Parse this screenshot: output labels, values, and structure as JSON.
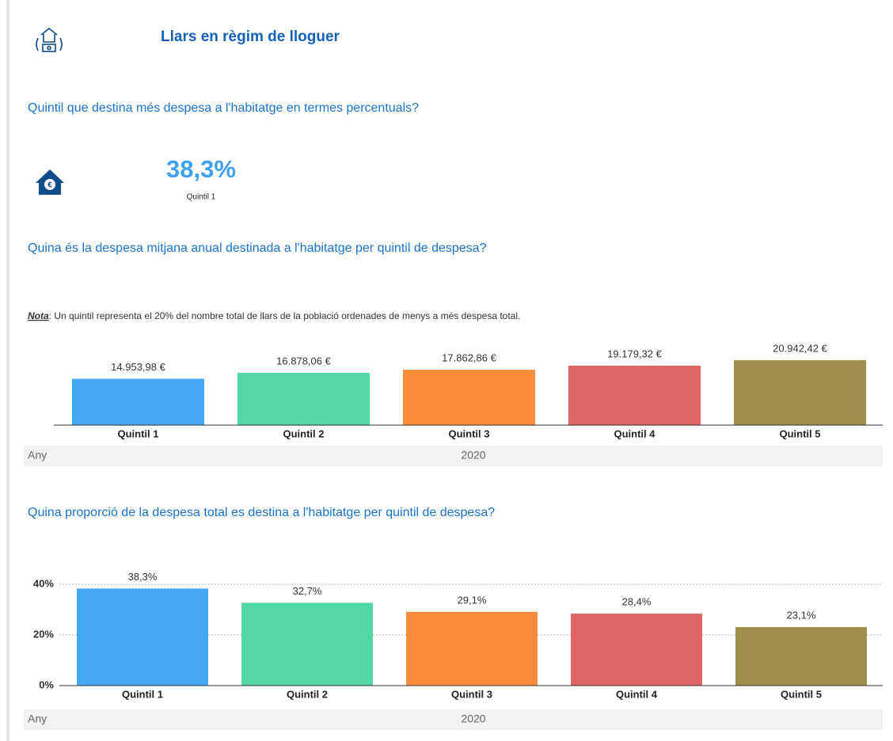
{
  "header": {
    "title": "Llars en règim de lloguer"
  },
  "questions": [
    "Quintil que destina més despesa a l'habitatge en termes percentuals?",
    "Quina és la despesa mitjana anual destinada a l'habitatge per quintil de despesa?",
    "Quina proporció de la despesa total es destina a l'habitatge per quintil de despesa?"
  ],
  "kpi": {
    "value": "38,3%",
    "label": "Quintil 1"
  },
  "note": {
    "label": "Nota",
    "text": ": Un quintil representa el 20% del nombre total de llars de la població ordenades de menys a més despesa total."
  },
  "chart_data": [
    {
      "type": "bar",
      "categories": [
        "Quintil 1",
        "Quintil 2",
        "Quintil 3",
        "Quintil 4",
        "Quintil 5"
      ],
      "values": [
        14953.98,
        16878.06,
        17862.86,
        19179.32,
        20942.42
      ],
      "value_labels": [
        "14.953,98 €",
        "16.878,06 €",
        "17.862,86 €",
        "19.179,32 €",
        "20.942,42 €"
      ],
      "colors": [
        "#45a8f8",
        "#55d6a5",
        "#fd8d3a",
        "#de6466",
        "#a08f4c"
      ],
      "x_label": "Any",
      "group_label": "2020"
    },
    {
      "type": "bar",
      "categories": [
        "Quintil 1",
        "Quintil 2",
        "Quintil 3",
        "Quintil 4",
        "Quintil 5"
      ],
      "values": [
        38.3,
        32.7,
        29.1,
        28.4,
        23.1
      ],
      "value_labels": [
        "38,3%",
        "32,7%",
        "29,1%",
        "28,4%",
        "23,1%"
      ],
      "colors": [
        "#45a8f8",
        "#55d6a5",
        "#fd8d3a",
        "#de6466",
        "#a08f4c"
      ],
      "ylim": [
        0,
        45
      ],
      "yticks": [
        {
          "value": 0,
          "label": "0%"
        },
        {
          "value": 20,
          "label": "20%"
        },
        {
          "value": 40,
          "label": "40%"
        }
      ],
      "grid": true,
      "x_label": "Any",
      "group_label": "2020"
    }
  ]
}
